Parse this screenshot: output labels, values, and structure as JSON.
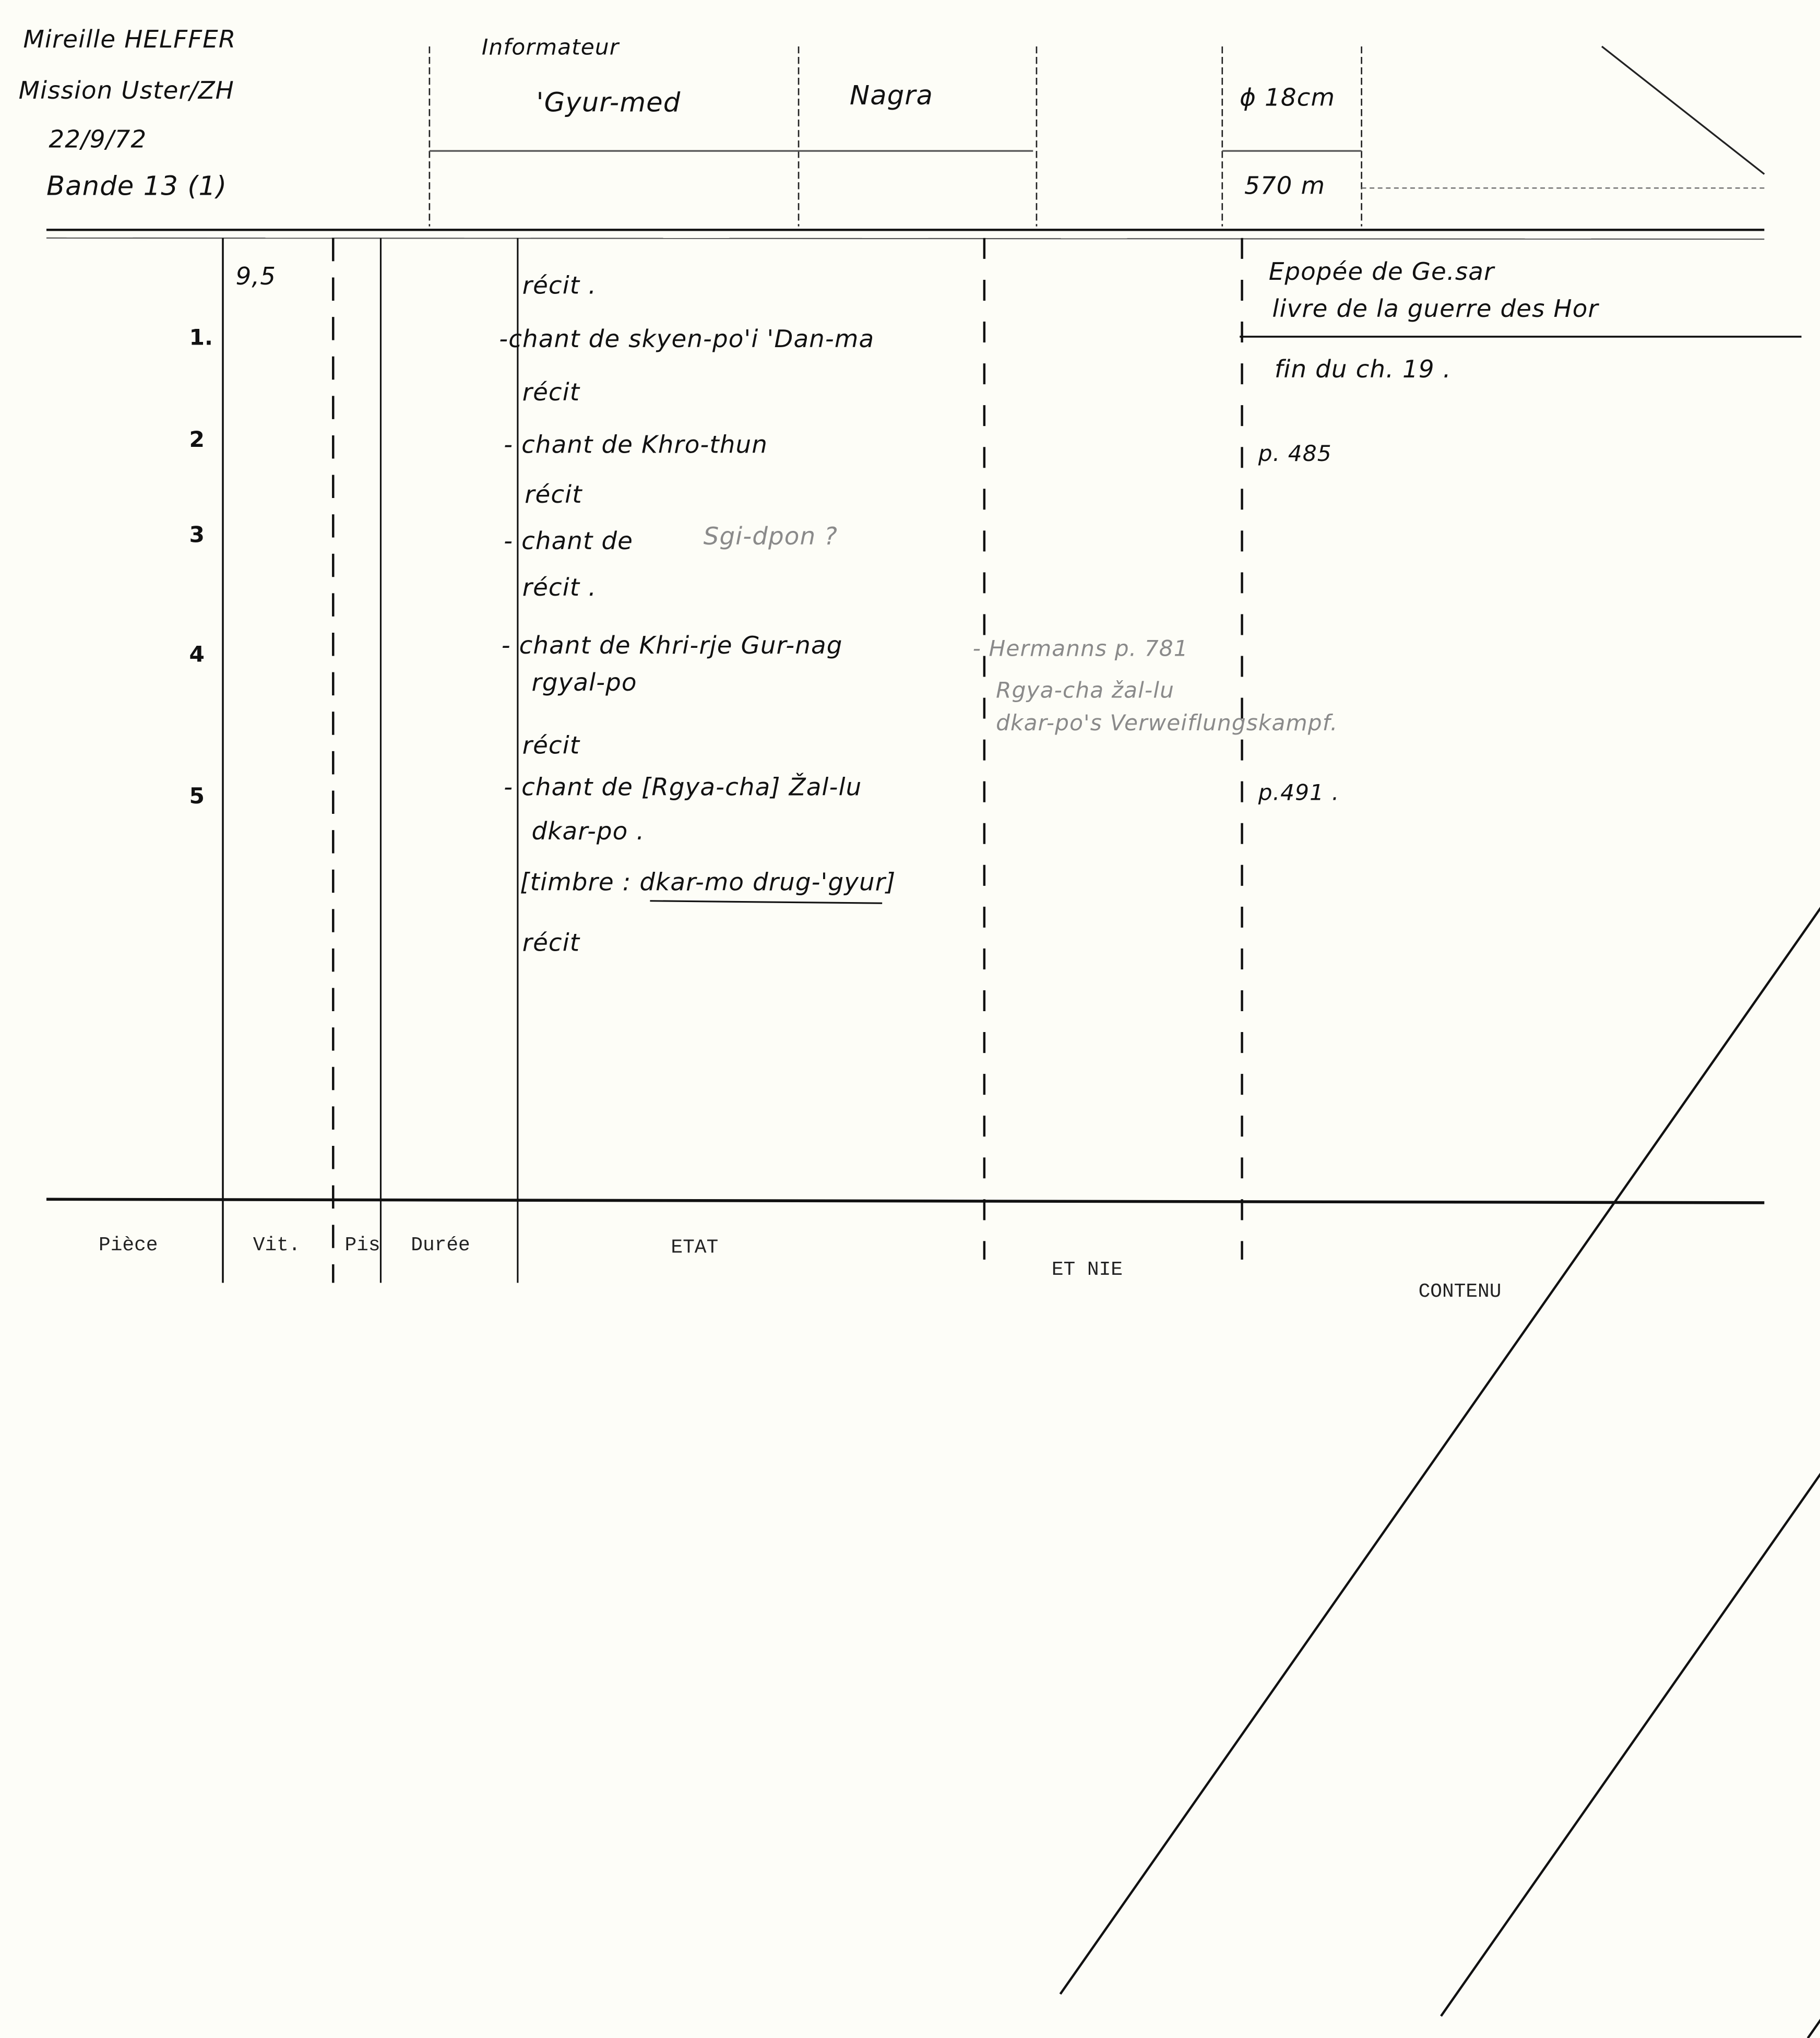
{
  "header": {
    "author": "Mireille HELFFER",
    "mission": "Mission Uster/ZH",
    "date": "22/9/72",
    "tape": "Bande 13 (1)",
    "informant_label": "Informateur",
    "informant": "'Gyur-med",
    "recorder": "Nagra",
    "reel_diameter": "ϕ 18cm",
    "tape_length": "570 m"
  },
  "speed": "9,5",
  "rows": [
    {
      "piece": "",
      "lines": [
        "récit ."
      ]
    },
    {
      "piece": "1.",
      "lines": [
        "-chant de skyen-po'i 'Dan-ma"
      ]
    },
    {
      "piece": "",
      "lines": [
        "récit"
      ]
    },
    {
      "piece": "2",
      "lines": [
        "- chant de Khro-thun"
      ]
    },
    {
      "piece": "",
      "lines": [
        "récit"
      ]
    },
    {
      "piece": "3",
      "lines": [
        "- chant de"
      ],
      "pencil": "Sgi-dpon ?"
    },
    {
      "piece": "",
      "lines": [
        "récit ."
      ]
    },
    {
      "piece": "4",
      "lines": [
        "- chant de Khri-rje Gur-nag",
        "rgyal-po"
      ]
    },
    {
      "piece": "",
      "lines": [
        "récit"
      ]
    },
    {
      "piece": "5",
      "lines": [
        "- chant de [Rgya-cha] Žal-lu",
        "dkar-po ."
      ]
    },
    {
      "piece": "",
      "lines": [
        "[timbre : dkar-mo drug-'gyur]"
      ]
    },
    {
      "piece": "",
      "lines": [
        "récit"
      ]
    }
  ],
  "notes": [
    "- Hermanns p. 781",
    "Rgya-cha žal-lu",
    "dkar-po's Verweiflungskampf."
  ],
  "content": {
    "title1": "Epopée de Ge.sar",
    "title2": "livre de la guerre des Hor",
    "end": "fin du ch. 19 .",
    "ref1": "p. 485",
    "ref2": "p.491 ."
  },
  "footer": [
    "Pièce",
    "Vit.",
    "Pis",
    "Durée",
    "ETAT",
    "ET NIE",
    "CONTENU"
  ]
}
